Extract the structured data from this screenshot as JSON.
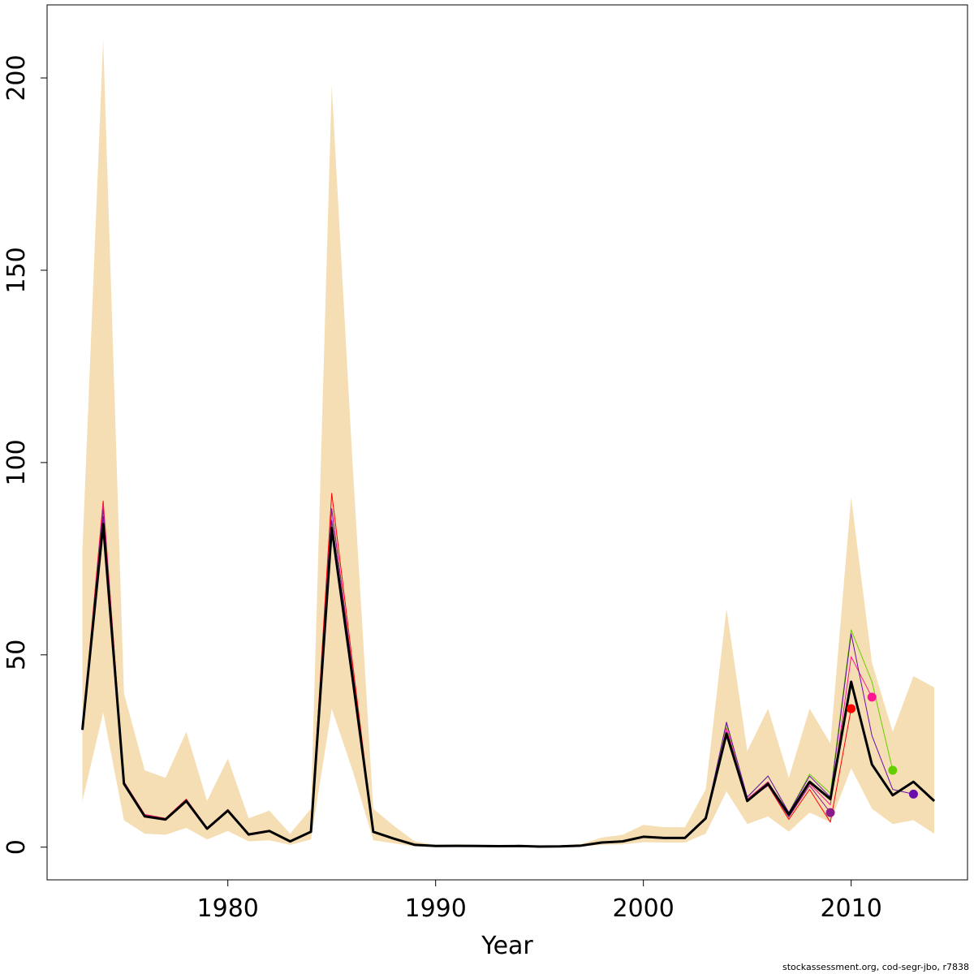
{
  "chart_data": {
    "type": "line",
    "title": "",
    "xlabel": "Year",
    "ylabel": "",
    "xlim": [
      1971.3,
      2015.6
    ],
    "ylim": [
      -8.5,
      219
    ],
    "x_ticks": [
      1980,
      1990,
      2000,
      2010
    ],
    "y_ticks": [
      0,
      50,
      100,
      150,
      200
    ],
    "grid": false,
    "legend": "none",
    "colors": {
      "band": "#f5deb3",
      "main": "#000000",
      "retro1": "#ff0000",
      "retro2": "#ff1493",
      "retro3": "#66cd00",
      "retro4": "#6a0dad",
      "retro5": "#8b1a8b"
    },
    "band": {
      "x": [
        1973,
        1974,
        1975,
        1976,
        1977,
        1978,
        1979,
        1980,
        1981,
        1982,
        1983,
        1984,
        1985,
        1986,
        1987,
        1988,
        1989,
        1990,
        1991,
        1992,
        1993,
        1994,
        1995,
        1996,
        1997,
        1998,
        1999,
        2000,
        2001,
        2002,
        2003,
        2004,
        2005,
        2006,
        2007,
        2008,
        2009,
        2010,
        2011,
        2012,
        2013,
        2014
      ],
      "upper": [
        77,
        210,
        40,
        20,
        18,
        30,
        12,
        23,
        7.5,
        9.5,
        3.5,
        10,
        198,
        100,
        10,
        5.5,
        1.5,
        0.6,
        0.7,
        0.6,
        0.5,
        0.6,
        0.4,
        0.5,
        0.8,
        2.5,
        3.2,
        5.8,
        5.2,
        5.2,
        15,
        62,
        25,
        36,
        18,
        36,
        27,
        91,
        48,
        30,
        44.5,
        41.5
      ],
      "lower": [
        12,
        35,
        7,
        3.5,
        3.2,
        5,
        2,
        4.2,
        1.5,
        1.8,
        0.6,
        2,
        36,
        20,
        1.8,
        1,
        0.2,
        0.1,
        0.1,
        0.1,
        0.1,
        0.1,
        0.05,
        0.1,
        0.2,
        0.6,
        0.7,
        1.3,
        1.2,
        1.2,
        3.5,
        14.5,
        6,
        8,
        4,
        9,
        6.5,
        20.5,
        10,
        6,
        7,
        3.5
      ]
    },
    "series": [
      {
        "x": [
          1973,
          1974,
          1975,
          1976,
          1977,
          1978,
          1979,
          1980,
          1981,
          1982,
          1983,
          1984,
          1985,
          1986,
          1987,
          1988,
          1989,
          1990,
          1991,
          1992,
          1993,
          1994,
          1995,
          1996,
          1997,
          1998,
          1999,
          2000,
          2001,
          2002,
          2003,
          2004,
          2005,
          2006,
          2007,
          2008,
          2009,
          2010,
          2011,
          2012,
          2013,
          2014
        ],
        "values": [
          30.5,
          84,
          16.5,
          8,
          7.2,
          12,
          4.8,
          9.5,
          3.3,
          4.2,
          1.5,
          4,
          83,
          44,
          4,
          2.2,
          0.6,
          0.3,
          0.35,
          0.3,
          0.25,
          0.3,
          0.15,
          0.2,
          0.4,
          1.2,
          1.5,
          2.7,
          2.4,
          2.4,
          7.5,
          29.5,
          12,
          16.5,
          8.5,
          17,
          12.5,
          43,
          21.5,
          13.5,
          17,
          12
        ]
      },
      {
        "x": [
          1973,
          1974,
          1975,
          1976,
          1977,
          1978,
          1979,
          1980,
          1981,
          1982,
          1983,
          1984,
          1985,
          1986,
          1987,
          1988,
          1989,
          1990,
          1991,
          1992,
          1993,
          1994,
          1995,
          1996,
          1997,
          1998,
          1999,
          2000,
          2001,
          2002,
          2003,
          2004,
          2005,
          2006,
          2007,
          2008,
          2009,
          2010
        ],
        "values": [
          30.5,
          90,
          17,
          8.5,
          7.5,
          12.5,
          5,
          9.8,
          3.5,
          4.4,
          1.6,
          4.2,
          92,
          48,
          4.2,
          2.3,
          0.65,
          0.3,
          0.35,
          0.3,
          0.25,
          0.3,
          0.15,
          0.2,
          0.4,
          1.2,
          1.5,
          2.8,
          2.5,
          2.5,
          7.2,
          29,
          12.5,
          16,
          7.2,
          15,
          6.5,
          36
        ]
      },
      {
        "x": [
          1973,
          1974,
          1975,
          1976,
          1977,
          1978,
          1979,
          1980,
          1981,
          1982,
          1983,
          1984,
          1985,
          1986,
          1987,
          1988,
          1989,
          1990,
          1991,
          1992,
          1993,
          1994,
          1995,
          1996,
          1997,
          1998,
          1999,
          2000,
          2001,
          2002,
          2003,
          2004,
          2005,
          2006,
          2007,
          2008,
          2009,
          2010,
          2011
        ],
        "values": [
          30.5,
          89,
          17,
          8.4,
          7.4,
          12.4,
          5,
          9.7,
          3.4,
          4.3,
          1.6,
          4.1,
          88,
          46,
          4.1,
          2.3,
          0.6,
          0.3,
          0.35,
          0.3,
          0.25,
          0.3,
          0.15,
          0.2,
          0.4,
          1.2,
          1.5,
          2.8,
          2.5,
          2.5,
          7.4,
          31,
          12.5,
          17,
          8,
          16.5,
          11,
          49.5,
          39
        ]
      },
      {
        "x": [
          1973,
          1974,
          1975,
          1976,
          1977,
          1978,
          1979,
          1980,
          1981,
          1982,
          1983,
          1984,
          1985,
          1986,
          1987,
          1988,
          1989,
          1990,
          1991,
          1992,
          1993,
          1994,
          1995,
          1996,
          1997,
          1998,
          1999,
          2000,
          2001,
          2002,
          2003,
          2004,
          2005,
          2006,
          2007,
          2008,
          2009,
          2010,
          2011,
          2012
        ],
        "values": [
          30.5,
          86,
          16.8,
          8.2,
          7.3,
          12.2,
          4.9,
          9.6,
          3.3,
          4.2,
          1.5,
          4,
          85,
          45,
          4,
          2.2,
          0.6,
          0.3,
          0.35,
          0.3,
          0.25,
          0.3,
          0.15,
          0.2,
          0.4,
          1.2,
          1.5,
          2.8,
          2.5,
          2.5,
          7.6,
          32,
          13,
          18.5,
          9,
          19,
          14,
          56.5,
          43,
          20
        ]
      },
      {
        "x": [
          1973,
          1974,
          1975,
          1976,
          1977,
          1978,
          1979,
          1980,
          1981,
          1982,
          1983,
          1984,
          1985,
          1986,
          1987,
          1988,
          1989,
          1990,
          1991,
          1992,
          1993,
          1994,
          1995,
          1996,
          1997,
          1998,
          1999,
          2000,
          2001,
          2002,
          2003,
          2004,
          2005,
          2006,
          2007,
          2008,
          2009,
          2010,
          2011,
          2012,
          2013
        ],
        "values": [
          30.5,
          86,
          16.8,
          8.2,
          7.3,
          12.2,
          4.9,
          9.6,
          3.3,
          4.2,
          1.5,
          4,
          85,
          45,
          4,
          2.2,
          0.6,
          0.3,
          0.35,
          0.3,
          0.25,
          0.3,
          0.15,
          0.2,
          0.4,
          1.2,
          1.5,
          2.8,
          2.5,
          2.5,
          7.6,
          32.5,
          13,
          18.5,
          9,
          18.5,
          13,
          55.5,
          29,
          15,
          13.8
        ]
      },
      {
        "x": [
          1973,
          1974,
          1975,
          1976,
          1977,
          1978,
          1979,
          1980,
          1981,
          1982,
          1983,
          1984,
          1985,
          1986,
          1987,
          1988,
          1989,
          1990,
          1991,
          1992,
          1993,
          1994,
          1995,
          1996,
          1997,
          1998,
          1999,
          2000,
          2001,
          2002,
          2003,
          2004,
          2005,
          2006,
          2007,
          2008,
          2009
        ],
        "values": [
          30.5,
          88,
          17,
          8.3,
          7.4,
          12.3,
          5,
          9.7,
          3.4,
          4.3,
          1.6,
          4.1,
          88,
          46,
          4.1,
          2.2,
          0.6,
          0.3,
          0.35,
          0.3,
          0.25,
          0.3,
          0.15,
          0.2,
          0.4,
          1.2,
          1.5,
          2.8,
          2.5,
          2.5,
          7.5,
          30,
          12,
          16,
          7.8,
          16,
          9
        ]
      }
    ],
    "end_points": [
      {
        "x": 2009,
        "y": 9,
        "color": "#8b1a8b"
      },
      {
        "x": 2010,
        "y": 36,
        "color": "#ff0000"
      },
      {
        "x": 2011,
        "y": 39,
        "color": "#ff1493"
      },
      {
        "x": 2012,
        "y": 20,
        "color": "#66cd00"
      },
      {
        "x": 2013,
        "y": 13.8,
        "color": "#6a0dad"
      }
    ]
  },
  "footer": "stockassessment.org, cod-segr-jbo, r7838"
}
